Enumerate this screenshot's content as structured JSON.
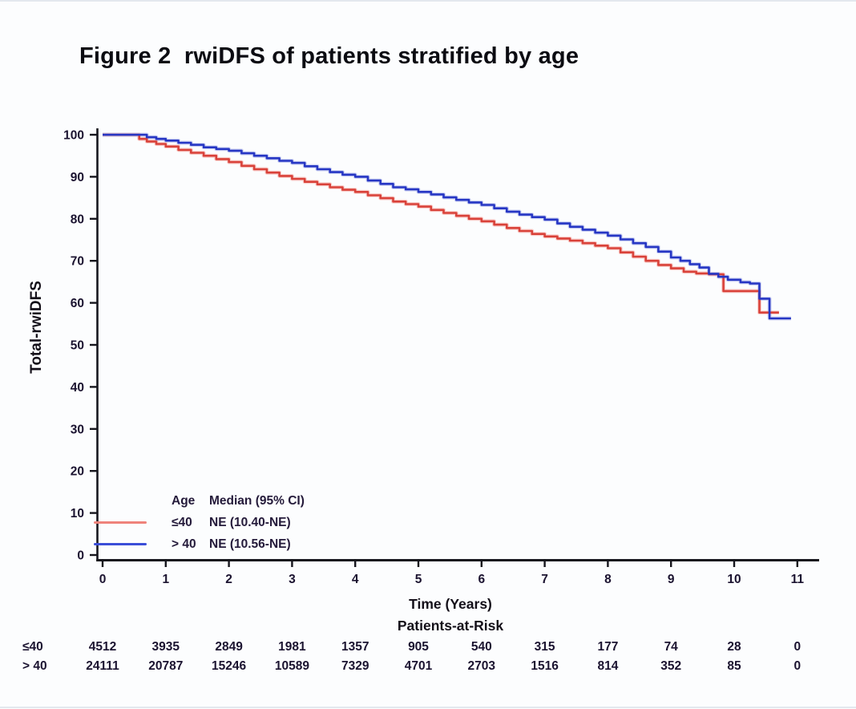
{
  "title": "Figure 2  rwiDFS of patients stratified by age",
  "chart_data": {
    "type": "line",
    "subtype": "kaplan-meier-step",
    "title": "Figure 2  rwiDFS of patients stratified by age",
    "xlabel": "Time (Years)",
    "ylabel": "Total-rwiDFS",
    "xlim": [
      0,
      11
    ],
    "ylim": [
      0,
      100
    ],
    "x_ticks": [
      0,
      1,
      2,
      3,
      4,
      5,
      6,
      7,
      8,
      9,
      10,
      11
    ],
    "y_ticks": [
      0,
      10,
      20,
      30,
      40,
      50,
      60,
      70,
      80,
      90,
      100
    ],
    "grid": false,
    "legend": {
      "position": "inside-lower-left",
      "header_age": "Age",
      "header_median": "Median (95% CI)",
      "entries": [
        {
          "label": "≤40",
          "median": "NE (10.40-NE)",
          "swatch_color": "#ef837b"
        },
        {
          "label": "> 40",
          "median": "NE (10.56-NE)",
          "swatch_color": "#3b4ed8"
        }
      ]
    },
    "series": [
      {
        "name": "≤40",
        "color": "#d9423a",
        "glow_color": "#f6aba4",
        "points": [
          [
            0,
            100
          ],
          [
            0.5,
            100
          ],
          [
            0.58,
            99.0
          ],
          [
            0.7,
            98.4
          ],
          [
            0.85,
            97.8
          ],
          [
            1.0,
            97.2
          ],
          [
            1.2,
            96.4
          ],
          [
            1.4,
            95.7
          ],
          [
            1.6,
            95.0
          ],
          [
            1.8,
            94.2
          ],
          [
            2.0,
            93.5
          ],
          [
            2.2,
            92.6
          ],
          [
            2.4,
            91.8
          ],
          [
            2.6,
            91.0
          ],
          [
            2.8,
            90.2
          ],
          [
            3.0,
            89.5
          ],
          [
            3.2,
            88.8
          ],
          [
            3.4,
            88.2
          ],
          [
            3.6,
            87.5
          ],
          [
            3.8,
            86.9
          ],
          [
            4.0,
            86.4
          ],
          [
            4.2,
            85.6
          ],
          [
            4.4,
            84.9
          ],
          [
            4.6,
            84.1
          ],
          [
            4.8,
            83.5
          ],
          [
            5.0,
            82.9
          ],
          [
            5.2,
            82.1
          ],
          [
            5.4,
            81.4
          ],
          [
            5.6,
            80.7
          ],
          [
            5.8,
            80.0
          ],
          [
            6.0,
            79.4
          ],
          [
            6.2,
            78.6
          ],
          [
            6.4,
            77.8
          ],
          [
            6.6,
            77.1
          ],
          [
            6.8,
            76.4
          ],
          [
            7.0,
            75.8
          ],
          [
            7.2,
            75.3
          ],
          [
            7.4,
            74.8
          ],
          [
            7.6,
            74.2
          ],
          [
            7.8,
            73.6
          ],
          [
            8.0,
            73.0
          ],
          [
            8.2,
            72.0
          ],
          [
            8.4,
            71.0
          ],
          [
            8.6,
            70.0
          ],
          [
            8.8,
            69.0
          ],
          [
            9.0,
            68.2
          ],
          [
            9.2,
            67.4
          ],
          [
            9.4,
            67.0
          ],
          [
            9.6,
            66.8
          ],
          [
            9.83,
            62.8
          ],
          [
            10.4,
            57.7
          ],
          [
            10.71,
            57.7
          ]
        ]
      },
      {
        "name": "> 40",
        "color": "#2636c4",
        "glow_color": "#a9b3e9",
        "points": [
          [
            0,
            100
          ],
          [
            0.55,
            100
          ],
          [
            0.7,
            99.4
          ],
          [
            0.85,
            99.0
          ],
          [
            1.0,
            98.6
          ],
          [
            1.2,
            98.1
          ],
          [
            1.4,
            97.6
          ],
          [
            1.6,
            97.0
          ],
          [
            1.8,
            96.6
          ],
          [
            2.0,
            96.2
          ],
          [
            2.2,
            95.6
          ],
          [
            2.4,
            95.0
          ],
          [
            2.6,
            94.4
          ],
          [
            2.8,
            93.8
          ],
          [
            3.0,
            93.3
          ],
          [
            3.2,
            92.5
          ],
          [
            3.4,
            91.8
          ],
          [
            3.6,
            91.1
          ],
          [
            3.8,
            90.5
          ],
          [
            4.0,
            90.0
          ],
          [
            4.2,
            89.1
          ],
          [
            4.4,
            88.3
          ],
          [
            4.6,
            87.5
          ],
          [
            4.8,
            87.0
          ],
          [
            5.0,
            86.4
          ],
          [
            5.2,
            85.8
          ],
          [
            5.4,
            85.1
          ],
          [
            5.6,
            84.5
          ],
          [
            5.8,
            83.9
          ],
          [
            6.0,
            83.3
          ],
          [
            6.2,
            82.5
          ],
          [
            6.4,
            81.7
          ],
          [
            6.6,
            81.0
          ],
          [
            6.8,
            80.4
          ],
          [
            7.0,
            79.8
          ],
          [
            7.2,
            78.9
          ],
          [
            7.4,
            78.1
          ],
          [
            7.6,
            77.4
          ],
          [
            7.8,
            76.7
          ],
          [
            8.0,
            76.0
          ],
          [
            8.2,
            75.1
          ],
          [
            8.4,
            74.2
          ],
          [
            8.6,
            73.3
          ],
          [
            8.8,
            72.2
          ],
          [
            9.0,
            70.8
          ],
          [
            9.15,
            70.0
          ],
          [
            9.3,
            69.2
          ],
          [
            9.45,
            68.4
          ],
          [
            9.6,
            66.9
          ],
          [
            9.75,
            66.2
          ],
          [
            9.9,
            65.5
          ],
          [
            10.1,
            64.9
          ],
          [
            10.25,
            64.6
          ],
          [
            10.4,
            61.0
          ],
          [
            10.56,
            56.3
          ],
          [
            10.9,
            56.3
          ]
        ]
      }
    ],
    "at_risk": {
      "title": "Patients-at-Risk",
      "times": [
        0,
        1,
        2,
        3,
        4,
        5,
        6,
        7,
        8,
        9,
        10,
        11
      ],
      "rows": [
        {
          "label": "≤40",
          "counts": [
            4512,
            3935,
            2849,
            1981,
            1357,
            905,
            540,
            315,
            177,
            74,
            28,
            0
          ]
        },
        {
          "label": "> 40",
          "counts": [
            24111,
            20787,
            15246,
            10589,
            7329,
            4701,
            2703,
            1516,
            814,
            352,
            85,
            0
          ]
        }
      ]
    }
  }
}
